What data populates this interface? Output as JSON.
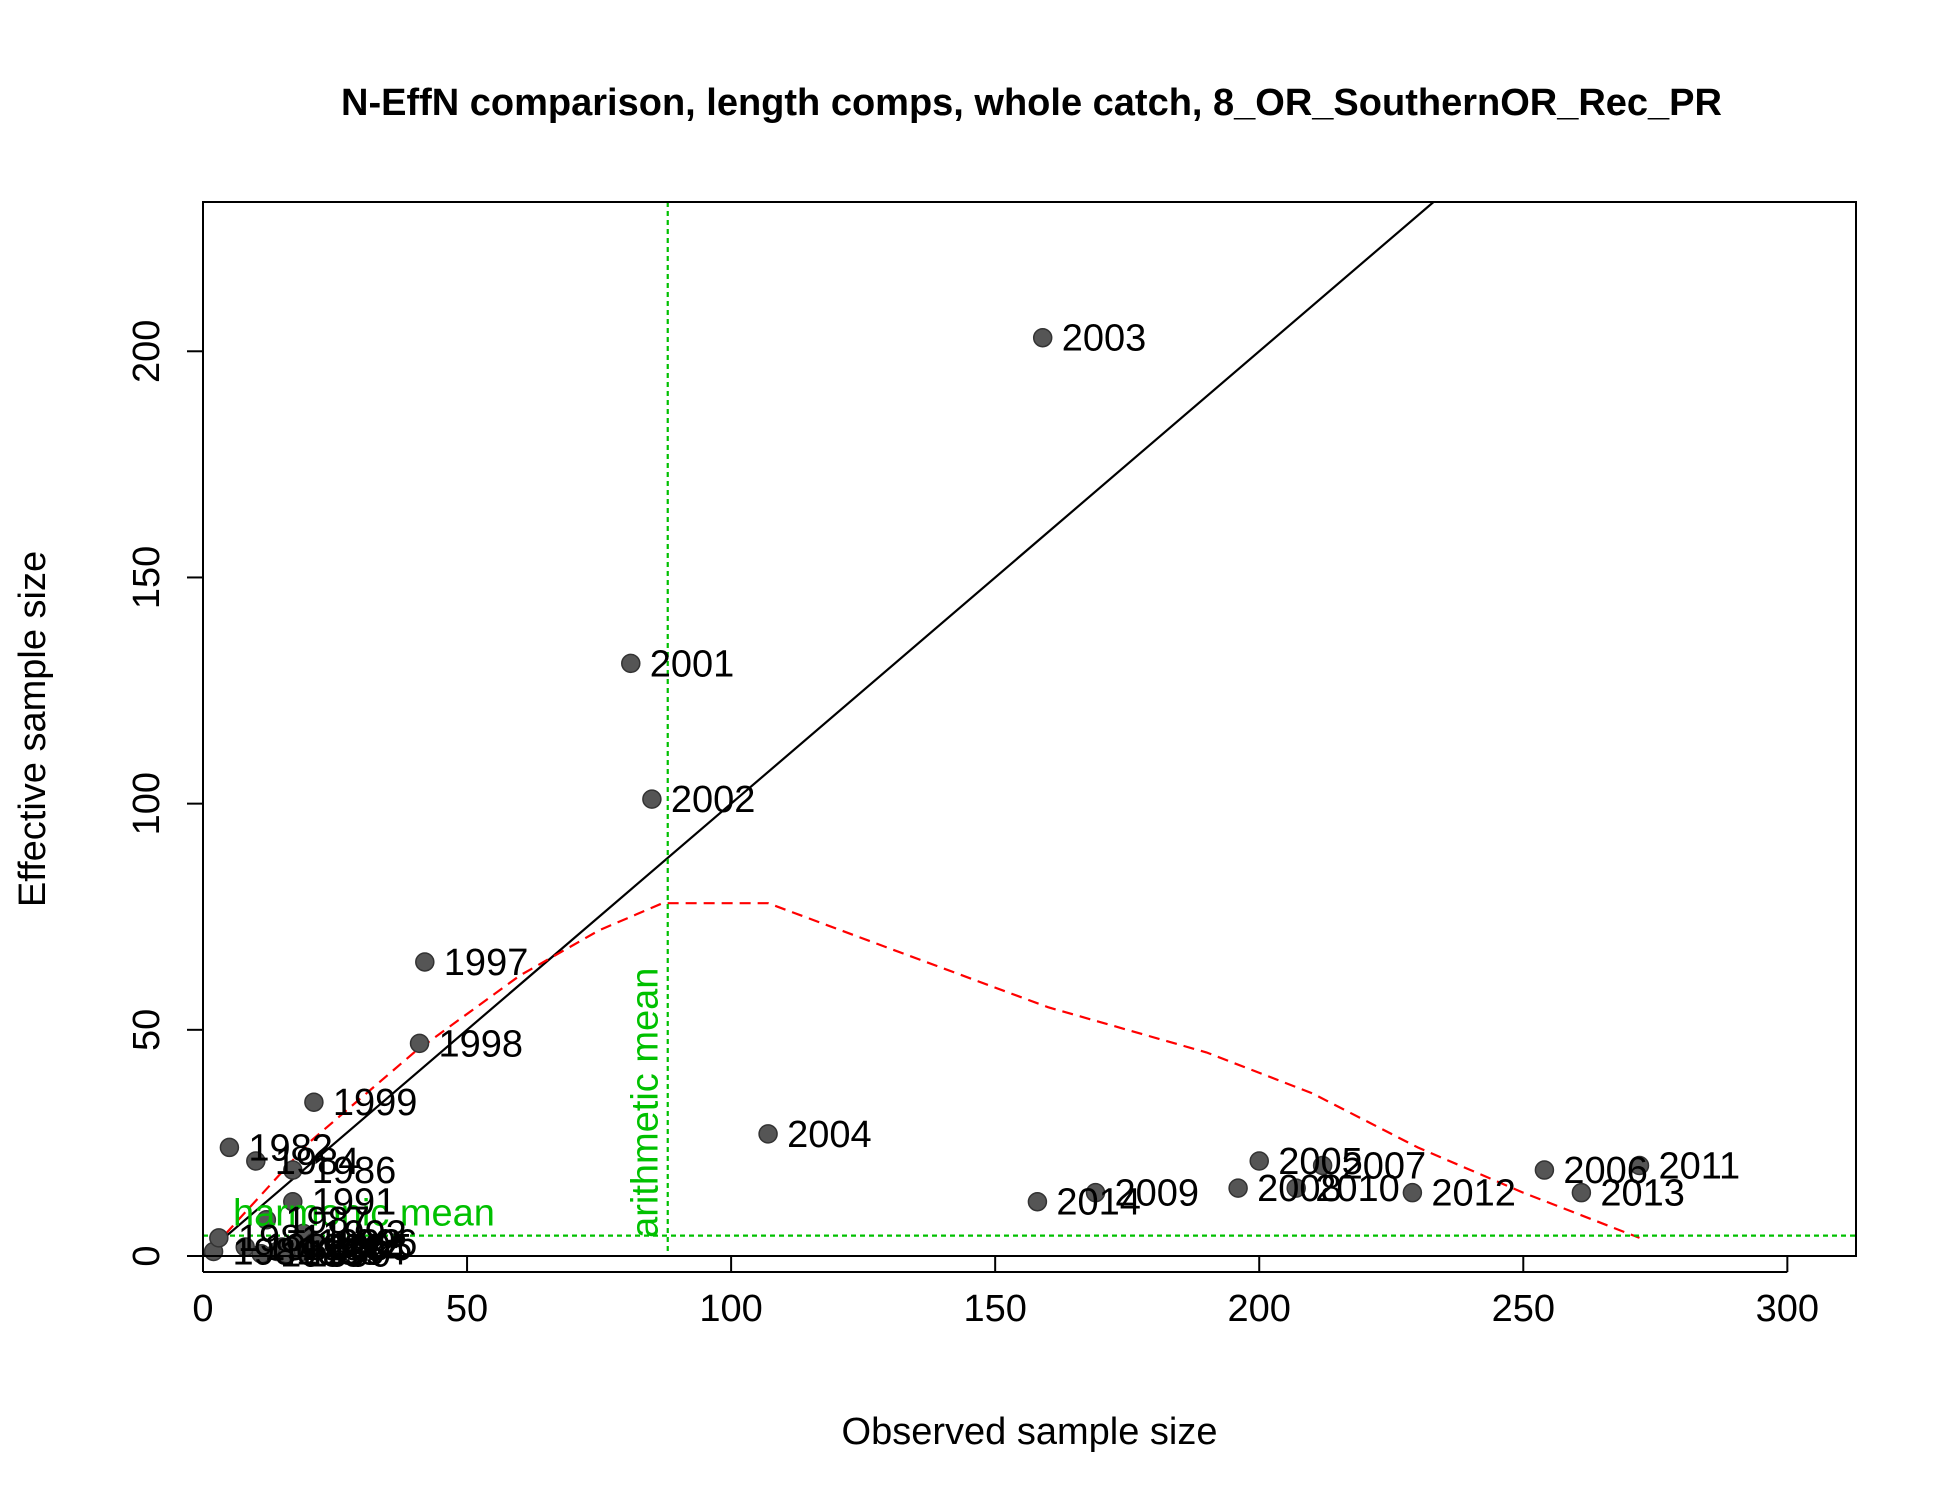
{
  "chart_data": {
    "type": "scatter",
    "title": "N-EffN comparison, length comps, whole catch, 8_OR_SouthernOR_Rec_PR",
    "xlabel": "Observed sample size",
    "ylabel": "Effective sample size",
    "xlim": [
      0,
      313
    ],
    "ylim": [
      0,
      233
    ],
    "xticks": [
      "0",
      "50",
      "100",
      "150",
      "200",
      "250",
      "300"
    ],
    "yticks": [
      "0",
      "50",
      "100",
      "150",
      "200"
    ],
    "points": [
      {
        "label": "1980",
        "x": 2,
        "y": 1
      },
      {
        "label": "1981",
        "x": 3,
        "y": 4
      },
      {
        "label": "1982",
        "x": 5,
        "y": 24
      },
      {
        "label": "1983",
        "x": 8,
        "y": 2
      },
      {
        "label": "1984",
        "x": 10,
        "y": 21
      },
      {
        "label": "1985",
        "x": 11,
        "y": 0.5
      },
      {
        "label": "1986",
        "x": 17,
        "y": 19
      },
      {
        "label": "1987",
        "x": 12,
        "y": 8
      },
      {
        "label": "1988",
        "x": 14,
        "y": 1
      },
      {
        "label": "1989",
        "x": 15,
        "y": 2
      },
      {
        "label": "1990",
        "x": 16,
        "y": 0.5
      },
      {
        "label": "1991",
        "x": 17,
        "y": 12
      },
      {
        "label": "1992",
        "x": 18,
        "y": 3
      },
      {
        "label": "1993",
        "x": 19,
        "y": 5
      },
      {
        "label": "1994",
        "x": 19,
        "y": 1
      },
      {
        "label": "1995",
        "x": 20,
        "y": 2
      },
      {
        "label": "1996",
        "x": 21,
        "y": 3
      },
      {
        "label": "1997",
        "x": 42,
        "y": 65
      },
      {
        "label": "1998",
        "x": 41,
        "y": 47
      },
      {
        "label": "1999",
        "x": 21,
        "y": 34
      },
      {
        "label": "2001",
        "x": 81,
        "y": 131
      },
      {
        "label": "2002",
        "x": 85,
        "y": 101
      },
      {
        "label": "2003",
        "x": 159,
        "y": 203
      },
      {
        "label": "2004",
        "x": 107,
        "y": 27
      },
      {
        "label": "2005",
        "x": 200,
        "y": 21
      },
      {
        "label": "2006",
        "x": 254,
        "y": 19
      },
      {
        "label": "2007",
        "x": 212,
        "y": 20
      },
      {
        "label": "2008",
        "x": 196,
        "y": 15
      },
      {
        "label": "2009",
        "x": 169,
        "y": 14
      },
      {
        "label": "2010",
        "x": 207,
        "y": 15
      },
      {
        "label": "2011",
        "x": 272,
        "y": 20
      },
      {
        "label": "2012",
        "x": 229,
        "y": 14
      },
      {
        "label": "2013",
        "x": 261,
        "y": 14
      },
      {
        "label": "2014",
        "x": 158,
        "y": 12
      }
    ],
    "one_to_one_line": true,
    "smoother": [
      [
        2,
        2
      ],
      [
        20,
        25
      ],
      [
        40,
        45
      ],
      [
        60,
        62
      ],
      [
        75,
        72
      ],
      [
        87,
        78
      ],
      [
        95,
        78
      ],
      [
        107,
        78
      ],
      [
        130,
        68
      ],
      [
        160,
        55
      ],
      [
        190,
        45
      ],
      [
        210,
        36
      ],
      [
        230,
        24
      ],
      [
        250,
        14
      ],
      [
        272,
        4
      ]
    ],
    "arithmetic_mean": {
      "value": 88,
      "label": "arithmetic mean"
    },
    "harmonic_mean": {
      "value": 4.5,
      "label": "harmonic mean"
    },
    "colors": {
      "points": "#555555",
      "one_to_one": "#000000",
      "smoother": "#ff0000",
      "reference": "#00c000"
    },
    "grid": false,
    "legend": "none"
  }
}
